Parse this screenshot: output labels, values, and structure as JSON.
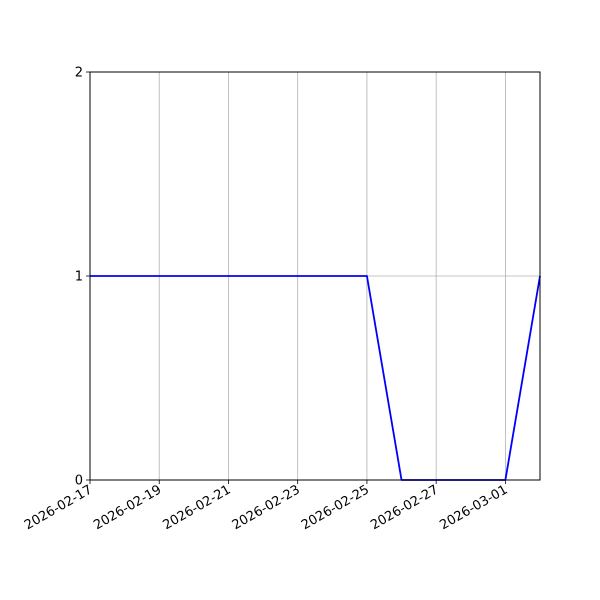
{
  "chart_data": {
    "type": "line",
    "title": "",
    "xlabel": "",
    "ylabel": "",
    "x": [
      "2026-02-17",
      "2026-02-18",
      "2026-02-19",
      "2026-02-20",
      "2026-02-21",
      "2026-02-22",
      "2026-02-23",
      "2026-02-24",
      "2026-02-25",
      "2026-02-26",
      "2026-02-27",
      "2026-02-28",
      "2026-03-01",
      "2026-03-02"
    ],
    "series": [
      {
        "values": [
          1,
          1,
          1,
          1,
          1,
          1,
          1,
          1,
          1,
          0,
          0,
          0,
          0,
          1
        ],
        "color": "#0000ff"
      }
    ],
    "xlim": [
      "2026-02-17",
      "2026-03-02"
    ],
    "ylim": [
      0,
      2
    ],
    "xticks": [
      "2026-02-17",
      "2026-02-19",
      "2026-02-21",
      "2026-02-23",
      "2026-02-25",
      "2026-02-27",
      "2026-03-01"
    ],
    "yticks": [
      "0",
      "1",
      "2"
    ],
    "grid": true,
    "grid_color": "#b0b0b0"
  }
}
